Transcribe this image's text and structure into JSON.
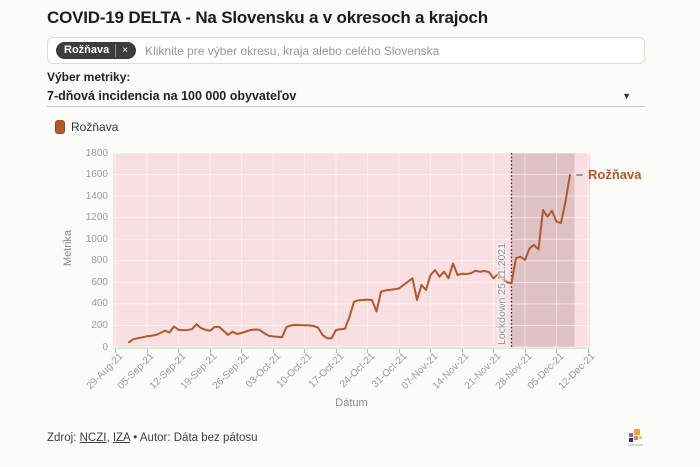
{
  "page": {
    "title": "COVID-19 DELTA - Na Slovensku a v okresoch a krajoch"
  },
  "filter": {
    "tag": "Rožňava",
    "remove_icon": "×",
    "placeholder": "Kliknite pre výber okresu, kraja alebo celého Slovenska"
  },
  "metric": {
    "label": "Výber metriky:",
    "selected": "7-dňová incidencia na 100 000 obyvateľov",
    "caret_icon": "▼"
  },
  "legend": {
    "items": [
      {
        "label": "Rožňava",
        "color": "#b2572e"
      }
    ]
  },
  "chart_data": {
    "type": "line",
    "xlabel": "Dátum",
    "ylabel": "Metrika",
    "ylim": [
      0,
      1800
    ],
    "y_ticks": [
      0,
      200,
      400,
      600,
      800,
      1000,
      1200,
      1400,
      1600,
      1800
    ],
    "x_ticks": [
      "29-Aug-21",
      "05-Sep-21",
      "12-Sep-21",
      "19-Sep-21",
      "26-Sep-21",
      "03-Oct-21",
      "10-Oct-21",
      "17-Oct-21",
      "24-Oct-21",
      "31-Oct-21",
      "07-Nov-21",
      "14-Nov-21",
      "21-Nov-21",
      "28-Nov-21",
      "05-Dec-21",
      "12-Dec-21"
    ],
    "grid": true,
    "plot_bg": "#f8dfe1",
    "band_color": "rgba(110,55,70,0.18)",
    "end_label": "Rožňava",
    "annotations": {
      "lockdown_line": {
        "date": "2021-11-25",
        "label": "Lockdown 25.11.2021"
      },
      "shaded_band": {
        "from": "2021-11-25",
        "to": "2021-12-09"
      }
    },
    "series": [
      {
        "name": "Rožňava",
        "color": "#b2572e",
        "points": [
          [
            "2021-09-01",
            45
          ],
          [
            "2021-09-02",
            72
          ],
          [
            "2021-09-03",
            82
          ],
          [
            "2021-09-04",
            90
          ],
          [
            "2021-09-05",
            100
          ],
          [
            "2021-09-06",
            105
          ],
          [
            "2021-09-07",
            112
          ],
          [
            "2021-09-08",
            130
          ],
          [
            "2021-09-09",
            152
          ],
          [
            "2021-09-10",
            135
          ],
          [
            "2021-09-11",
            190
          ],
          [
            "2021-09-12",
            160
          ],
          [
            "2021-09-13",
            155
          ],
          [
            "2021-09-14",
            158
          ],
          [
            "2021-09-15",
            165
          ],
          [
            "2021-09-16",
            212
          ],
          [
            "2021-09-17",
            175
          ],
          [
            "2021-09-18",
            160
          ],
          [
            "2021-09-19",
            150
          ],
          [
            "2021-09-20",
            185
          ],
          [
            "2021-09-21",
            188
          ],
          [
            "2021-09-22",
            150
          ],
          [
            "2021-09-23",
            112
          ],
          [
            "2021-09-24",
            142
          ],
          [
            "2021-09-25",
            121
          ],
          [
            "2021-09-26",
            130
          ],
          [
            "2021-09-27",
            145
          ],
          [
            "2021-09-28",
            158
          ],
          [
            "2021-09-29",
            162
          ],
          [
            "2021-09-30",
            160
          ],
          [
            "2021-10-01",
            130
          ],
          [
            "2021-10-02",
            105
          ],
          [
            "2021-10-03",
            98
          ],
          [
            "2021-10-04",
            96
          ],
          [
            "2021-10-05",
            90
          ],
          [
            "2021-10-06",
            185
          ],
          [
            "2021-10-07",
            200
          ],
          [
            "2021-10-08",
            205
          ],
          [
            "2021-10-09",
            203
          ],
          [
            "2021-10-10",
            202
          ],
          [
            "2021-10-11",
            200
          ],
          [
            "2021-10-12",
            195
          ],
          [
            "2021-10-13",
            180
          ],
          [
            "2021-10-14",
            112
          ],
          [
            "2021-10-15",
            82
          ],
          [
            "2021-10-16",
            80
          ],
          [
            "2021-10-17",
            158
          ],
          [
            "2021-10-18",
            164
          ],
          [
            "2021-10-19",
            170
          ],
          [
            "2021-10-20",
            280
          ],
          [
            "2021-10-21",
            420
          ],
          [
            "2021-10-22",
            432
          ],
          [
            "2021-10-23",
            436
          ],
          [
            "2021-10-24",
            440
          ],
          [
            "2021-10-25",
            435
          ],
          [
            "2021-10-26",
            330
          ],
          [
            "2021-10-27",
            513
          ],
          [
            "2021-10-28",
            525
          ],
          [
            "2021-10-29",
            530
          ],
          [
            "2021-10-30",
            535
          ],
          [
            "2021-10-31",
            544
          ],
          [
            "2021-11-01",
            575
          ],
          [
            "2021-11-02",
            606
          ],
          [
            "2021-11-03",
            637
          ],
          [
            "2021-11-04",
            436
          ],
          [
            "2021-11-05",
            575
          ],
          [
            "2021-11-06",
            529
          ],
          [
            "2021-11-07",
            668
          ],
          [
            "2021-11-08",
            714
          ],
          [
            "2021-11-09",
            652
          ],
          [
            "2021-11-10",
            699
          ],
          [
            "2021-11-11",
            637
          ],
          [
            "2021-11-12",
            776
          ],
          [
            "2021-11-13",
            668
          ],
          [
            "2021-11-14",
            680
          ],
          [
            "2021-11-15",
            677
          ],
          [
            "2021-11-16",
            685
          ],
          [
            "2021-11-17",
            708
          ],
          [
            "2021-11-18",
            698
          ],
          [
            "2021-11-19",
            705
          ],
          [
            "2021-11-20",
            695
          ],
          [
            "2021-11-21",
            637
          ],
          [
            "2021-11-22",
            677
          ],
          [
            "2021-11-23",
            637
          ],
          [
            "2021-11-24",
            600
          ],
          [
            "2021-11-25",
            591
          ],
          [
            "2021-11-26",
            825
          ],
          [
            "2021-11-27",
            838
          ],
          [
            "2021-11-28",
            807
          ],
          [
            "2021-11-29",
            915
          ],
          [
            "2021-11-30",
            947
          ],
          [
            "2021-12-01",
            906
          ],
          [
            "2021-12-02",
            1271
          ],
          [
            "2021-12-03",
            1209
          ],
          [
            "2021-12-04",
            1265
          ],
          [
            "2021-12-05",
            1163
          ],
          [
            "2021-12-06",
            1150
          ],
          [
            "2021-12-07",
            1350
          ],
          [
            "2021-12-08",
            1596
          ]
        ]
      }
    ]
  },
  "footer": {
    "prefix": "Zdroj: ",
    "link1": "NCZI",
    "sep": ", ",
    "link2": "IZA",
    "suffix": " • Autor: Dáta bez pátosu"
  }
}
